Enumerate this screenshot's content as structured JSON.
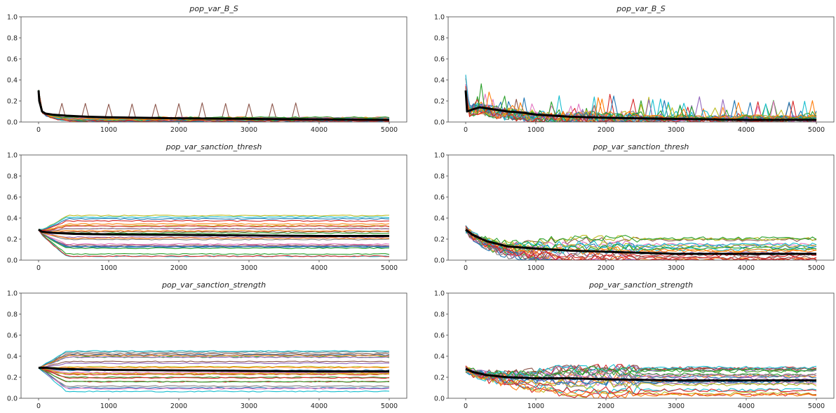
{
  "chart_data": [
    {
      "type": "line",
      "title": "pop_var_B_S",
      "xticks": [
        0,
        1000,
        2000,
        3000,
        4000,
        5000
      ],
      "yticks": [
        0.0,
        0.2,
        0.4,
        0.6,
        0.8,
        1.0
      ],
      "ytick_labels": [
        "0.0",
        "0.2",
        "0.4",
        "0.6",
        "0.8",
        "1.0"
      ],
      "xlim": [
        -250,
        5250
      ],
      "ylim": [
        0,
        1
      ],
      "mean_series": {
        "x": [
          0,
          10,
          50,
          100,
          200,
          400,
          700,
          1000,
          1500,
          2000,
          3000,
          4000,
          5000
        ],
        "y": [
          0.3,
          0.2,
          0.1,
          0.08,
          0.07,
          0.06,
          0.05,
          0.045,
          0.04,
          0.035,
          0.03,
          0.025,
          0.02
        ]
      }
    },
    {
      "type": "line",
      "title": "pop_var_sanction_thresh",
      "xticks": [
        0,
        1000,
        2000,
        3000,
        4000,
        5000
      ],
      "yticks": [
        0.0,
        0.2,
        0.4,
        0.6,
        0.8,
        1.0
      ],
      "ytick_labels": [
        "0.0",
        "0.2",
        "0.4",
        "0.6",
        "0.8",
        "1.0"
      ],
      "xlim": [
        -250,
        5250
      ],
      "ylim": [
        0,
        1
      ],
      "mean_series": {
        "x": [
          0,
          50,
          200,
          500,
          1000,
          2000,
          3000,
          4000,
          5000
        ],
        "y": [
          0.29,
          0.27,
          0.26,
          0.25,
          0.245,
          0.24,
          0.235,
          0.23,
          0.23
        ]
      }
    },
    {
      "type": "line",
      "title": "pop_var_sanction_strength",
      "xticks": [
        0,
        1000,
        2000,
        3000,
        4000,
        5000
      ],
      "yticks": [
        0.0,
        0.2,
        0.4,
        0.6,
        0.8,
        1.0
      ],
      "ytick_labels": [
        "0.0",
        "0.2",
        "0.4",
        "0.6",
        "0.8",
        "1.0"
      ],
      "xlim": [
        -250,
        5250
      ],
      "ylim": [
        0,
        1
      ],
      "mean_series": {
        "x": [
          0,
          100,
          300,
          600,
          1000,
          2000,
          3000,
          4000,
          5000
        ],
        "y": [
          0.29,
          0.29,
          0.28,
          0.275,
          0.27,
          0.265,
          0.26,
          0.255,
          0.255
        ]
      }
    },
    {
      "type": "line",
      "title": "pop_var_B_S",
      "xticks": [
        0,
        1000,
        2000,
        3000,
        4000,
        5000
      ],
      "yticks": [
        0.0,
        0.2,
        0.4,
        0.6,
        0.8,
        1.0
      ],
      "ytick_labels": [
        "0.0",
        "0.2",
        "0.4",
        "0.6",
        "0.8",
        "1.0"
      ],
      "xlim": [
        -250,
        5250
      ],
      "ylim": [
        0,
        1
      ],
      "mean_series": {
        "x": [
          0,
          20,
          100,
          200,
          400,
          600,
          800,
          1000,
          1500,
          2000,
          3000,
          4000,
          5000
        ],
        "y": [
          0.3,
          0.1,
          0.12,
          0.14,
          0.12,
          0.1,
          0.09,
          0.07,
          0.05,
          0.04,
          0.03,
          0.02,
          0.02
        ]
      }
    },
    {
      "type": "line",
      "title": "pop_var_sanction_thresh",
      "xticks": [
        0,
        1000,
        2000,
        3000,
        4000,
        5000
      ],
      "yticks": [
        0.0,
        0.2,
        0.4,
        0.6,
        0.8,
        1.0
      ],
      "ytick_labels": [
        "0.0",
        "0.2",
        "0.4",
        "0.6",
        "0.8",
        "1.0"
      ],
      "xlim": [
        -250,
        5250
      ],
      "ylim": [
        0,
        1
      ],
      "mean_series": {
        "x": [
          0,
          100,
          300,
          600,
          1000,
          1500,
          2000,
          2500,
          3000,
          4000,
          5000
        ],
        "y": [
          0.29,
          0.24,
          0.18,
          0.13,
          0.11,
          0.09,
          0.08,
          0.07,
          0.06,
          0.06,
          0.06
        ]
      }
    },
    {
      "type": "line",
      "title": "pop_var_sanction_strength",
      "xticks": [
        0,
        1000,
        2000,
        3000,
        4000,
        5000
      ],
      "yticks": [
        0.0,
        0.2,
        0.4,
        0.6,
        0.8,
        1.0
      ],
      "ytick_labels": [
        "0.0",
        "0.2",
        "0.4",
        "0.6",
        "0.8",
        "1.0"
      ],
      "xlim": [
        -250,
        5250
      ],
      "ylim": [
        0,
        1
      ],
      "mean_series": {
        "x": [
          0,
          100,
          300,
          600,
          1000,
          1500,
          2000,
          3000,
          4000,
          5000
        ],
        "y": [
          0.28,
          0.25,
          0.22,
          0.2,
          0.19,
          0.19,
          0.18,
          0.17,
          0.17,
          0.17
        ]
      }
    }
  ],
  "colors": {
    "mean_line": "#000000",
    "cycle": [
      "#1f77b4",
      "#ff7f0e",
      "#2ca02c",
      "#d62728",
      "#9467bd",
      "#8c564b",
      "#e377c2",
      "#7f7f7f",
      "#bcbd22",
      "#17becf"
    ]
  }
}
